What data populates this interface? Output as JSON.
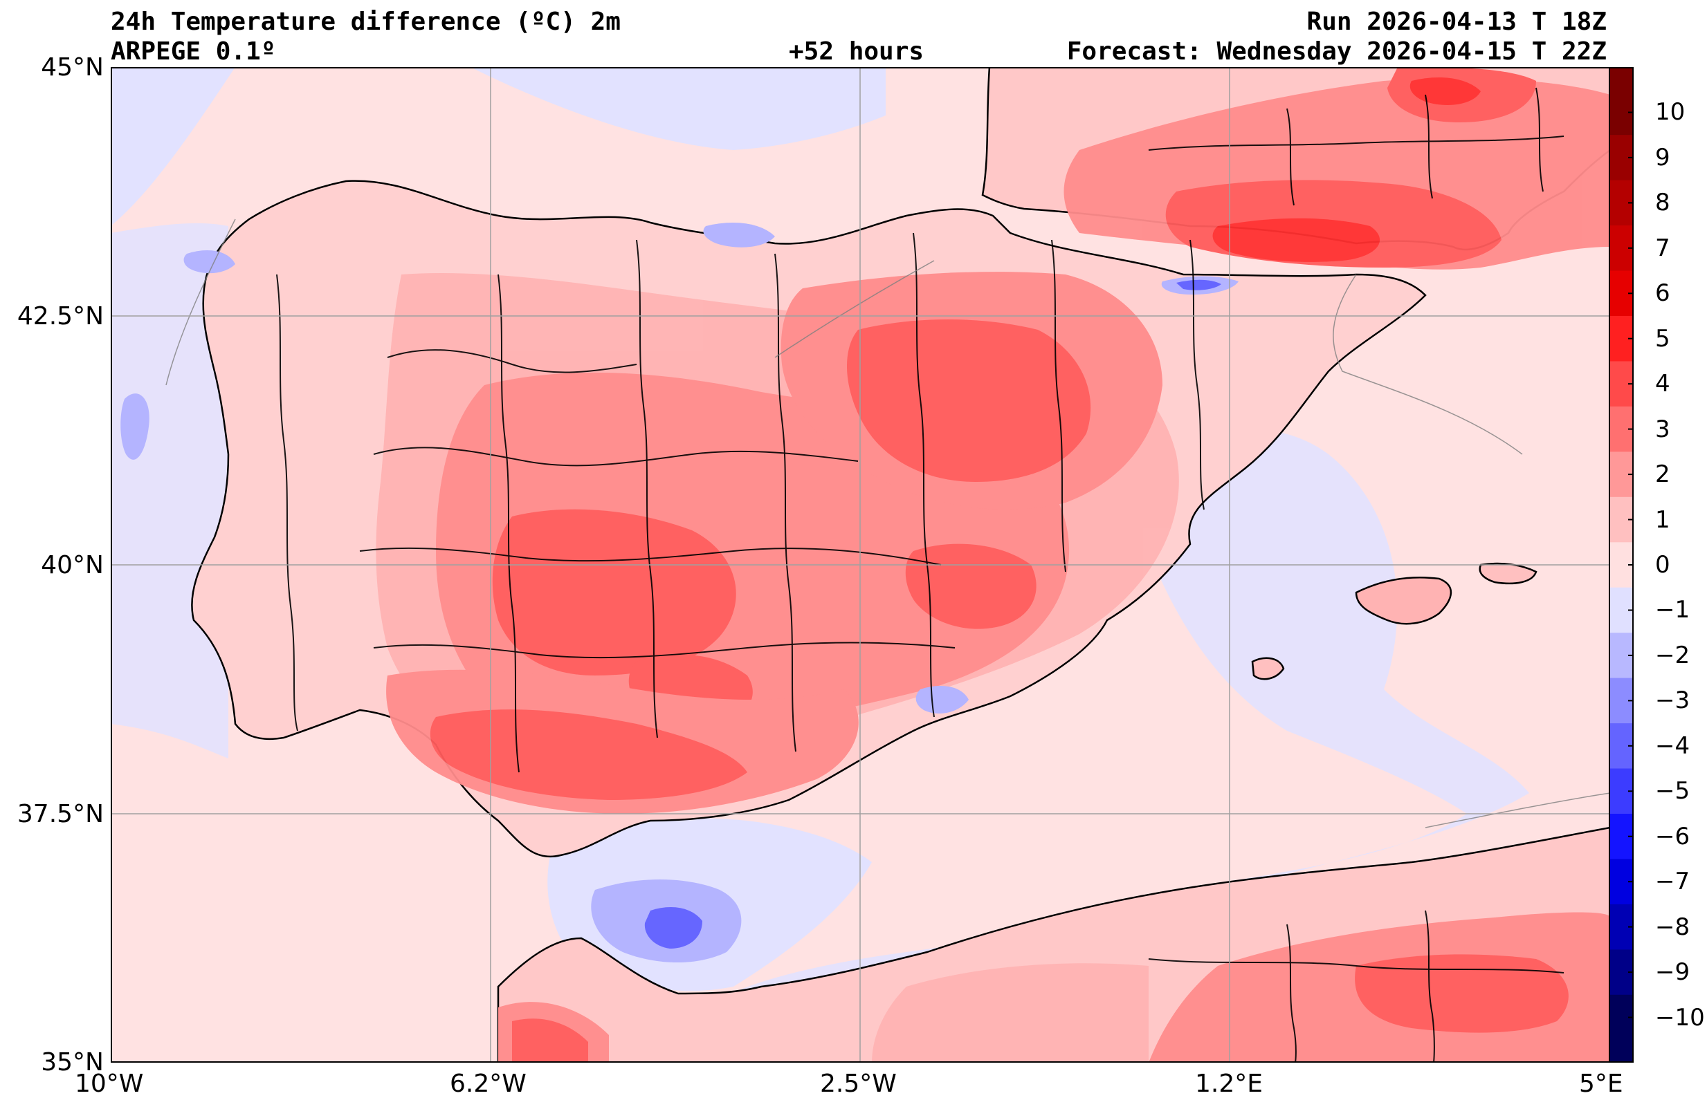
{
  "header": {
    "title": "24h Temperature difference (ºC) 2m",
    "model": "ARPEGE 0.1º",
    "lead": "+52 hours",
    "run": "Run 2026-04-13 T 18Z",
    "forecast": "Forecast: Wednesday 2026-04-15 T 22Z"
  },
  "axes": {
    "lat_labels": [
      "45°N",
      "42.5°N",
      "40°N",
      "37.5°N",
      "35°N"
    ],
    "lon_labels": [
      "10°W",
      "6.2°W",
      "2.5°W",
      "1.2°E",
      "5°E"
    ],
    "lat_range": [
      35,
      45
    ],
    "lon_range": [
      -10,
      5
    ]
  },
  "colorbar": {
    "labels": [
      "10",
      "9",
      "8",
      "7",
      "6",
      "5",
      "4",
      "3",
      "2",
      "1",
      "0",
      "−1",
      "−2",
      "−3",
      "−4",
      "−5",
      "−6",
      "−7",
      "−8",
      "−9",
      "−10"
    ],
    "colors": [
      "#7a0000",
      "#9a0000",
      "#b40000",
      "#cc0000",
      "#e60000",
      "#ff2020",
      "#ff4a4a",
      "#ff7070",
      "#ff9898",
      "#ffc0c0",
      "#ffe0e0",
      "#e0e0ff",
      "#b8b8ff",
      "#8c8cff",
      "#6464ff",
      "#3c3cff",
      "#1414ff",
      "#0000e0",
      "#0000b4",
      "#000088",
      "#00005a"
    ]
  },
  "colors": {
    "sea_neutral": "#ffe2e2",
    "cool": "#e2e2ff",
    "warm1": "#ffb3b3",
    "warm2": "#ff8c8c",
    "warm3": "#ff5c5c",
    "warm4": "#ff3030",
    "cold1": "#b4b4ff",
    "cold2": "#6666ff",
    "coast": "#000000",
    "grid": "#a0a0a0"
  }
}
